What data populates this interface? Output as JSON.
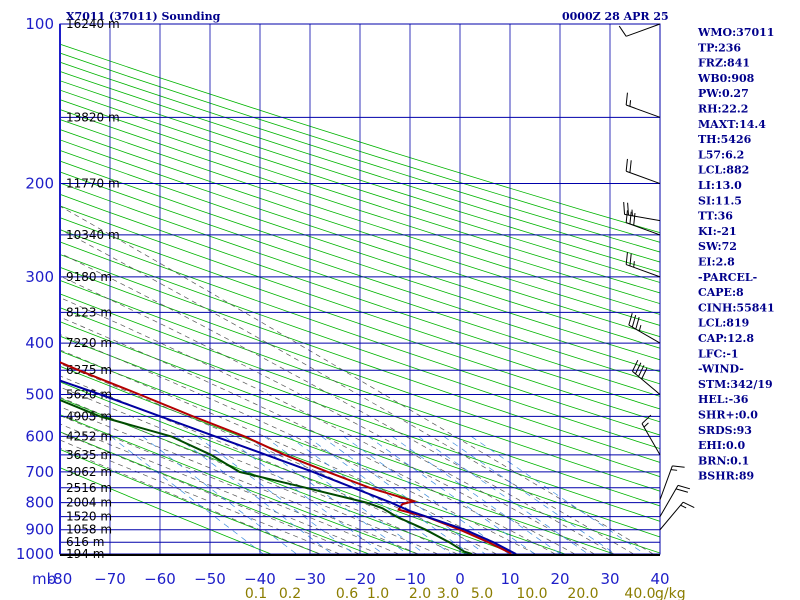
{
  "header": {
    "station": "X7011 (37011) Sounding",
    "time": "0000Z 28 APR 25"
  },
  "indices": [
    "WMO:37011",
    "TP:236",
    "FRZ:841",
    "WB0:908",
    "PW:0.27",
    "RH:22.2",
    "MAXT:14.4",
    "TH:5426",
    "L57:6.2",
    "LCL:882",
    "LI:13.0",
    "SI:11.5",
    "TT:36",
    "KI:-21",
    "SW:72",
    "EI:2.8",
    "-PARCEL-",
    "CAPE:8",
    "CINH:55841",
    "LCL:819",
    "CAP:12.8",
    "LFC:-1",
    "-WIND-",
    "STM:342/19",
    "HEL:-36",
    "SHR+:0.0",
    "SRDS:93",
    "EHI:0.0",
    "BRN:0.1",
    "BSHR:89"
  ],
  "chart_data": {
    "type": "line",
    "title": "X7011 (37011) Sounding",
    "y_unit_label": "mb",
    "pressure_levels": [
      100,
      150,
      200,
      250,
      300,
      350,
      400,
      450,
      500,
      550,
      600,
      650,
      700,
      750,
      800,
      850,
      900,
      950,
      1000
    ],
    "pressure_tick_labels": [
      "100",
      "200",
      "300",
      "400",
      "500",
      "600",
      "700",
      "800",
      "900",
      "1000"
    ],
    "temperature_ticks": [
      -80,
      -70,
      -60,
      -50,
      -40,
      -30,
      -20,
      -10,
      0,
      10,
      20,
      30,
      40
    ],
    "temperature_tick_labels": [
      "-80",
      "−70",
      "−60",
      "−50",
      "−40",
      "−30",
      "−20",
      "−10",
      "0",
      "10",
      "20",
      "30",
      "40"
    ],
    "height_labels": [
      {
        "p": 100,
        "text": "16240 m"
      },
      {
        "p": 150,
        "text": "13820 m"
      },
      {
        "p": 200,
        "text": "11770 m"
      },
      {
        "p": 250,
        "text": "10340 m"
      },
      {
        "p": 300,
        "text": "9180 m"
      },
      {
        "p": 350,
        "text": "8123 m"
      },
      {
        "p": 400,
        "text": "7220 m"
      },
      {
        "p": 450,
        "text": "6375 m"
      },
      {
        "p": 500,
        "text": "5620 m"
      },
      {
        "p": 550,
        "text": "4905 m"
      },
      {
        "p": 600,
        "text": "4252 m"
      },
      {
        "p": 650,
        "text": "3635 m"
      },
      {
        "p": 700,
        "text": "3062 m"
      },
      {
        "p": 750,
        "text": "2516 m"
      },
      {
        "p": 800,
        "text": "2004 m"
      },
      {
        "p": 850,
        "text": "1520 m"
      },
      {
        "p": 900,
        "text": "1058 m"
      },
      {
        "p": 950,
        "text": "616 m"
      },
      {
        "p": 1000,
        "text": "194 m"
      }
    ],
    "mixing_ratio_labels": [
      "0.1",
      "0.2",
      "0.6",
      "1.0",
      "2.0",
      "3.0",
      "5.0",
      "10.0",
      "20.0",
      "40.0"
    ],
    "mixing_ratio_unit": "g/kg",
    "series": [
      {
        "key": "temperature",
        "color": "#b40000",
        "points": [
          [
            100,
            -55
          ],
          [
            130,
            -52
          ],
          [
            150,
            -56
          ],
          [
            190,
            -55
          ],
          [
            230,
            -62
          ],
          [
            260,
            -59
          ],
          [
            300,
            -58
          ],
          [
            350,
            -52
          ],
          [
            400,
            -45
          ],
          [
            450,
            -38
          ],
          [
            500,
            -31
          ],
          [
            550,
            -25
          ],
          [
            600,
            -19
          ],
          [
            650,
            -15
          ],
          [
            700,
            -10
          ],
          [
            750,
            -5
          ],
          [
            795,
            1
          ],
          [
            805,
            -2
          ],
          [
            825,
            -4
          ],
          [
            850,
            0
          ],
          [
            900,
            4
          ],
          [
            950,
            7
          ],
          [
            995,
            9
          ],
          [
            1000,
            9
          ]
        ]
      },
      {
        "key": "dewpoint",
        "color": "#004b00",
        "points": [
          [
            100,
            -113
          ],
          [
            120,
            -112
          ],
          [
            150,
            -111
          ],
          [
            180,
            -111
          ],
          [
            200,
            -108
          ],
          [
            250,
            -105
          ],
          [
            300,
            -97
          ],
          [
            350,
            -88
          ],
          [
            400,
            -78
          ],
          [
            450,
            -64
          ],
          [
            500,
            -50
          ],
          [
            550,
            -44
          ],
          [
            600,
            -34
          ],
          [
            650,
            -30
          ],
          [
            700,
            -28
          ],
          [
            750,
            -18
          ],
          [
            800,
            -9
          ],
          [
            820,
            -7
          ],
          [
            850,
            -6
          ],
          [
            900,
            -3
          ],
          [
            950,
            -1
          ],
          [
            990,
            0
          ],
          [
            1000,
            1
          ]
        ]
      },
      {
        "key": "parcel",
        "color": "#0000a0",
        "points": [
          [
            240,
            -111
          ],
          [
            300,
            -87
          ],
          [
            400,
            -58
          ],
          [
            500,
            -39
          ],
          [
            600,
            -25
          ],
          [
            700,
            -13
          ],
          [
            800,
            -4
          ],
          [
            830,
            -2
          ],
          [
            900,
            5
          ],
          [
            950,
            8
          ],
          [
            1000,
            10
          ]
        ]
      }
    ],
    "wind_barbs": [
      {
        "p": 100,
        "dir": 250,
        "spd": 10
      },
      {
        "p": 150,
        "dir": 290,
        "spd": 15
      },
      {
        "p": 200,
        "dir": 290,
        "spd": 20
      },
      {
        "p": 235,
        "dir": 280,
        "spd": 25
      },
      {
        "p": 250,
        "dir": 290,
        "spd": 30
      },
      {
        "p": 300,
        "dir": 290,
        "spd": 25
      },
      {
        "p": 400,
        "dir": 300,
        "spd": 35
      },
      {
        "p": 500,
        "dir": 310,
        "spd": 40
      },
      {
        "p": 650,
        "dir": 330,
        "spd": 15
      },
      {
        "p": 790,
        "dir": 20,
        "spd": 15
      },
      {
        "p": 850,
        "dir": 30,
        "spd": 20
      },
      {
        "p": 900,
        "dir": 40,
        "spd": 15
      }
    ]
  }
}
